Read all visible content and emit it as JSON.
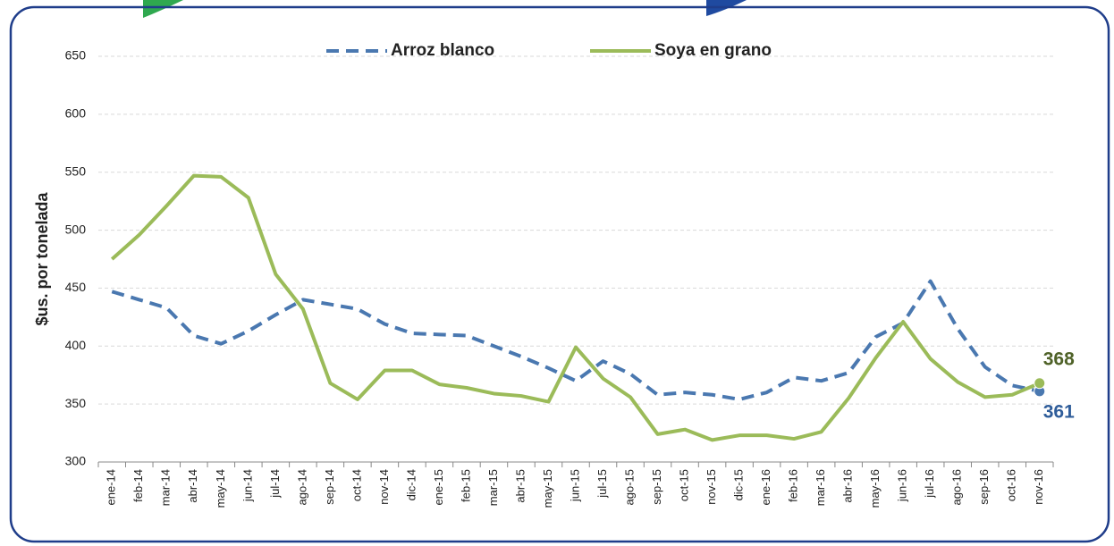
{
  "chart_data": {
    "type": "line",
    "y_label": "$us. por tonelada",
    "categories": [
      "ene-14",
      "feb-14",
      "mar-14",
      "abr-14",
      "may-14",
      "jun-14",
      "jul-14",
      "ago-14",
      "sep-14",
      "oct-14",
      "nov-14",
      "dic-14",
      "ene-15",
      "feb-15",
      "mar-15",
      "abr-15",
      "may-15",
      "jun-15",
      "jul-15",
      "ago-15",
      "sep-15",
      "oct-15",
      "nov-15",
      "dic-15",
      "ene-16",
      "feb-16",
      "mar-16",
      "abr-16",
      "may-16",
      "jun-16",
      "jul-16",
      "ago-16",
      "sep-16",
      "oct-16",
      "nov-16"
    ],
    "series": [
      {
        "name": "Arroz blanco",
        "color": "#4a78b0",
        "dashed": true,
        "values": [
          447,
          440,
          433,
          409,
          402,
          413,
          427,
          440,
          436,
          432,
          419,
          411,
          410,
          409,
          400,
          391,
          381,
          370,
          387,
          376,
          358,
          360,
          358,
          354,
          360,
          373,
          370,
          377,
          408,
          420,
          456,
          415,
          382,
          366,
          361
        ]
      },
      {
        "name": "Soya en grano",
        "color": "#9bbb59",
        "dashed": false,
        "values": [
          475,
          496,
          521,
          547,
          546,
          528,
          462,
          432,
          368,
          354,
          379,
          379,
          367,
          364,
          359,
          357,
          352,
          399,
          372,
          356,
          324,
          328,
          319,
          323,
          323,
          320,
          326,
          355,
          390,
          421,
          389,
          369,
          356,
          358,
          368
        ]
      }
    ],
    "ylim": [
      300,
      650
    ],
    "yticks": [
      300,
      350,
      400,
      450,
      500,
      550,
      600,
      650
    ],
    "grid": true,
    "legend": "top"
  }
}
